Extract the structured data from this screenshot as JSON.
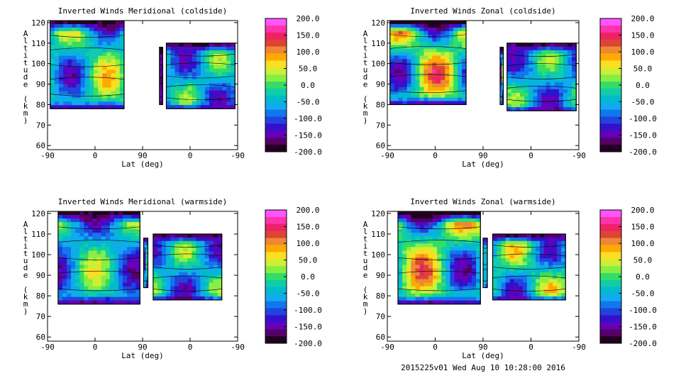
{
  "footer": {
    "text": "2015225v01 Wed Aug 10 10:28:00 2016"
  },
  "colorbar": {
    "tick_labels": [
      "200.0",
      "150.0",
      "100.0",
      "50.0",
      "0.0",
      "-50.0",
      "-100.0",
      "-150.0",
      "-200.0"
    ],
    "colors": [
      "#ff55ff",
      "#ff33aa",
      "#ee2266",
      "#dd4433",
      "#ee8833",
      "#ffaa00",
      "#ffdd22",
      "#ccf033",
      "#88ee44",
      "#33dd66",
      "#11ccaa",
      "#00bbcc",
      "#11aaee",
      "#1177ee",
      "#2244dd",
      "#3311cc",
      "#6600bb",
      "#550066",
      "#220022"
    ]
  },
  "chart_data": [
    {
      "type": "heatmap",
      "title": "Inverted Winds Meridional (coldside)",
      "xlabel": "Lat (deg)",
      "ylabel": "Altitude (km)",
      "x_tick_labels": [
        "-90",
        "0",
        "90",
        "0",
        "-90"
      ],
      "y_ticks": [
        60,
        70,
        80,
        90,
        100,
        110,
        120
      ],
      "ylim": [
        58,
        121
      ],
      "colorbar_range": [
        -200,
        200
      ],
      "data_blocks": [
        {
          "x": [
            -85,
            55
          ],
          "y": [
            78,
            121
          ],
          "min": -180,
          "max": 90
        },
        {
          "x": [
            122,
            128
          ],
          "y": [
            80,
            108
          ],
          "min": -200,
          "max": -120
        },
        {
          "x": [
            135,
            265
          ],
          "y": [
            78,
            110
          ],
          "min": -170,
          "max": 40
        }
      ]
    },
    {
      "type": "heatmap",
      "title": "Inverted Winds Zonal (coldside)",
      "xlabel": "Lat (deg)",
      "ylabel": "Altitude (km)",
      "x_tick_labels": [
        "-90",
        "0",
        "90",
        "0",
        "-90"
      ],
      "y_ticks": [
        60,
        70,
        80,
        90,
        100,
        110,
        120
      ],
      "ylim": [
        58,
        121
      ],
      "colorbar_range": [
        -200,
        200
      ],
      "data_blocks": [
        {
          "x": [
            -85,
            58
          ],
          "y": [
            80,
            121
          ],
          "min": -200,
          "max": 150
        },
        {
          "x": [
            122,
            128
          ],
          "y": [
            80,
            108
          ],
          "min": -200,
          "max": 30
        },
        {
          "x": [
            135,
            265
          ],
          "y": [
            77,
            110
          ],
          "min": -170,
          "max": 40
        }
      ]
    },
    {
      "type": "heatmap",
      "title": "Inverted Winds Meridional (warmside)",
      "xlabel": "Lat (deg)",
      "ylabel": "Altitude (km)",
      "x_tick_labels": [
        "-90",
        "0",
        "90",
        "0",
        "-90"
      ],
      "y_ticks": [
        60,
        70,
        80,
        90,
        100,
        110,
        120
      ],
      "ylim": [
        58,
        121
      ],
      "colorbar_range": [
        -200,
        200
      ],
      "data_blocks": [
        {
          "x": [
            -70,
            85
          ],
          "y": [
            76,
            121
          ],
          "min": -190,
          "max": 60
        },
        {
          "x": [
            92,
            100
          ],
          "y": [
            84,
            108
          ],
          "min": -150,
          "max": 10
        },
        {
          "x": [
            110,
            240
          ],
          "y": [
            78,
            110
          ],
          "min": -170,
          "max": 40
        }
      ]
    },
    {
      "type": "heatmap",
      "title": "Inverted Winds Zonal (warmside)",
      "xlabel": "Lat (deg)",
      "ylabel": "Altitude (km)",
      "x_tick_labels": [
        "-90",
        "0",
        "90",
        "0",
        "-90"
      ],
      "y_ticks": [
        60,
        70,
        80,
        90,
        100,
        110,
        120
      ],
      "ylim": [
        58,
        121
      ],
      "colorbar_range": [
        -200,
        200
      ],
      "data_blocks": [
        {
          "x": [
            -70,
            85
          ],
          "y": [
            76,
            121
          ],
          "min": -200,
          "max": 140
        },
        {
          "x": [
            90,
            98
          ],
          "y": [
            84,
            108
          ],
          "min": -150,
          "max": 40
        },
        {
          "x": [
            108,
            245
          ],
          "y": [
            78,
            110
          ],
          "min": -170,
          "max": 80
        }
      ]
    }
  ]
}
